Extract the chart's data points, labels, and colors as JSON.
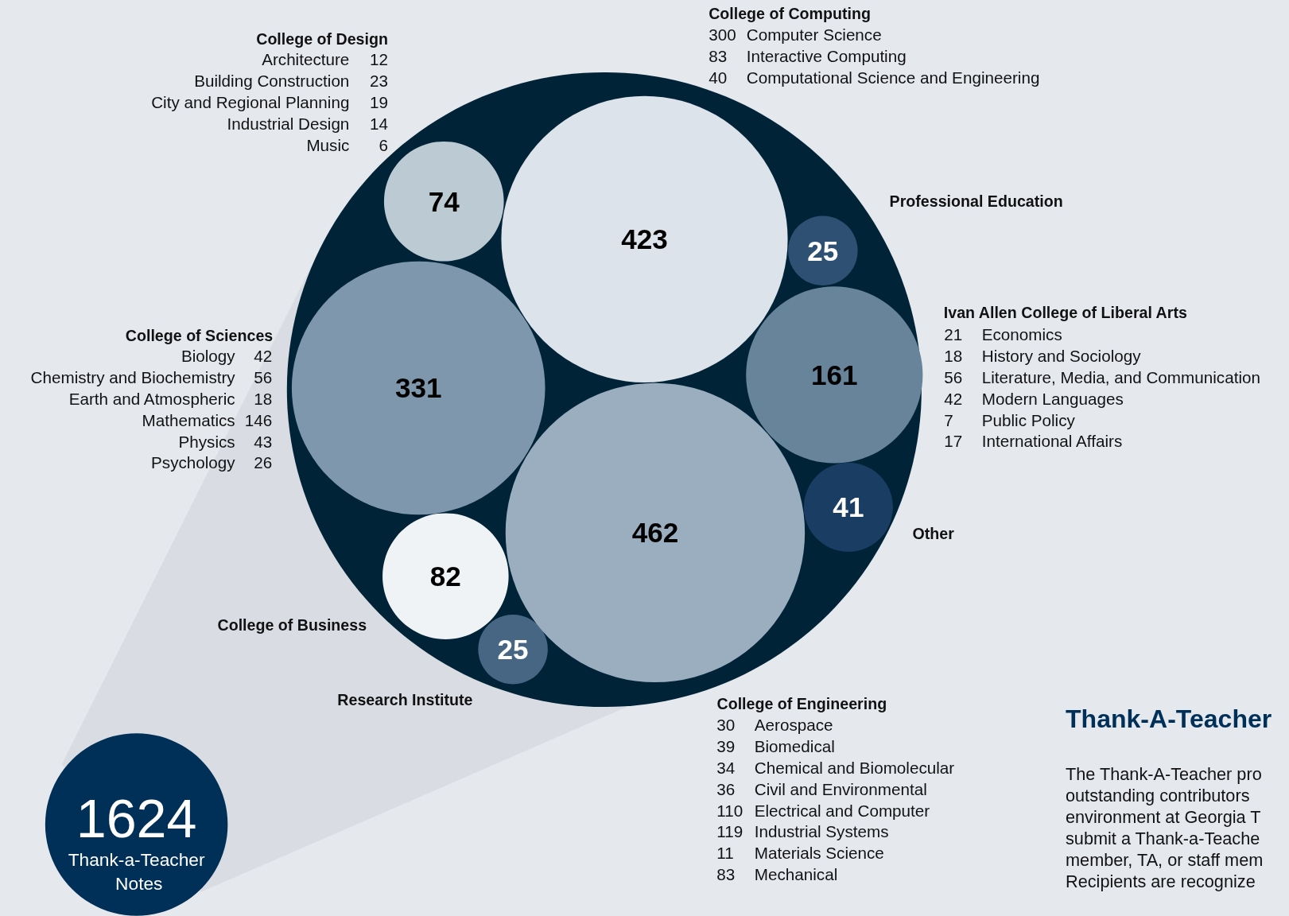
{
  "chart_data": [
    {
      "type": "other",
      "categories": [
        "College of Design",
        "College of Computing",
        "Professional Education",
        "Ivan Allen College of Liberal Arts",
        "College of Sciences",
        "Other",
        "College of Business",
        "Research Institute",
        "College of Engineering"
      ],
      "values": [
        74,
        423,
        25,
        161,
        331,
        41,
        82,
        25,
        462
      ],
      "colors": [
        "#bccad4",
        "#dce3ea",
        "#2e5073",
        "#68849b",
        "#7f97ac",
        "#1a3e63",
        "#f0f3f6",
        "#466684",
        "#9aaebf"
      ],
      "data_labels": true,
      "annotations": [
        "1624",
        "Thank-a-Teacher Notes"
      ]
    },
    {
      "type": "other",
      "categories": [
        "Architecture",
        "Building Construction",
        "City and Regional Planning",
        "Industrial Design",
        "Music"
      ],
      "values": [
        12,
        23,
        19,
        14,
        6
      ],
      "data_labels": true
    },
    {
      "type": "other",
      "categories": [
        "Computer Science",
        "Interactive Computing",
        "Computational Science and Engineering"
      ],
      "values": [
        300,
        83,
        40
      ],
      "data_labels": true
    },
    {
      "type": "other",
      "categories": [
        "Economics",
        "History and Sociology",
        "Literature, Media, and Communication",
        "Modern Languages",
        "Public Policy",
        "International Affairs"
      ],
      "values": [
        21,
        18,
        56,
        42,
        7,
        17
      ],
      "data_labels": true
    },
    {
      "type": "other",
      "categories": [
        "Biology",
        "Chemistry and Biochemistry",
        "Earth and Atmospheric",
        "Mathematics",
        "Physics",
        "Psychology"
      ],
      "values": [
        42,
        56,
        18,
        146,
        43,
        26
      ],
      "data_labels": true
    },
    {
      "type": "other",
      "categories": [
        "Aerospace",
        "Biomedical",
        "Chemical and Biomolecular",
        "Civil and Environmental",
        "Electrical and Computer",
        "Industrial Systems",
        "Materials Science",
        "Mechanical"
      ],
      "values": [
        30,
        39,
        34,
        36,
        110,
        119,
        11,
        83
      ],
      "data_labels": true
    },
    {
      "type": "other",
      "title": "Thank-A-Teacher",
      "annotations": [
        "The Thank-A-Teacher pro",
        "outstanding contributors",
        "environment at Georgia T",
        "submit a Thank-a-Teache",
        "member, TA, or staff mem",
        "Recipients are recognize"
      ]
    }
  ]
}
